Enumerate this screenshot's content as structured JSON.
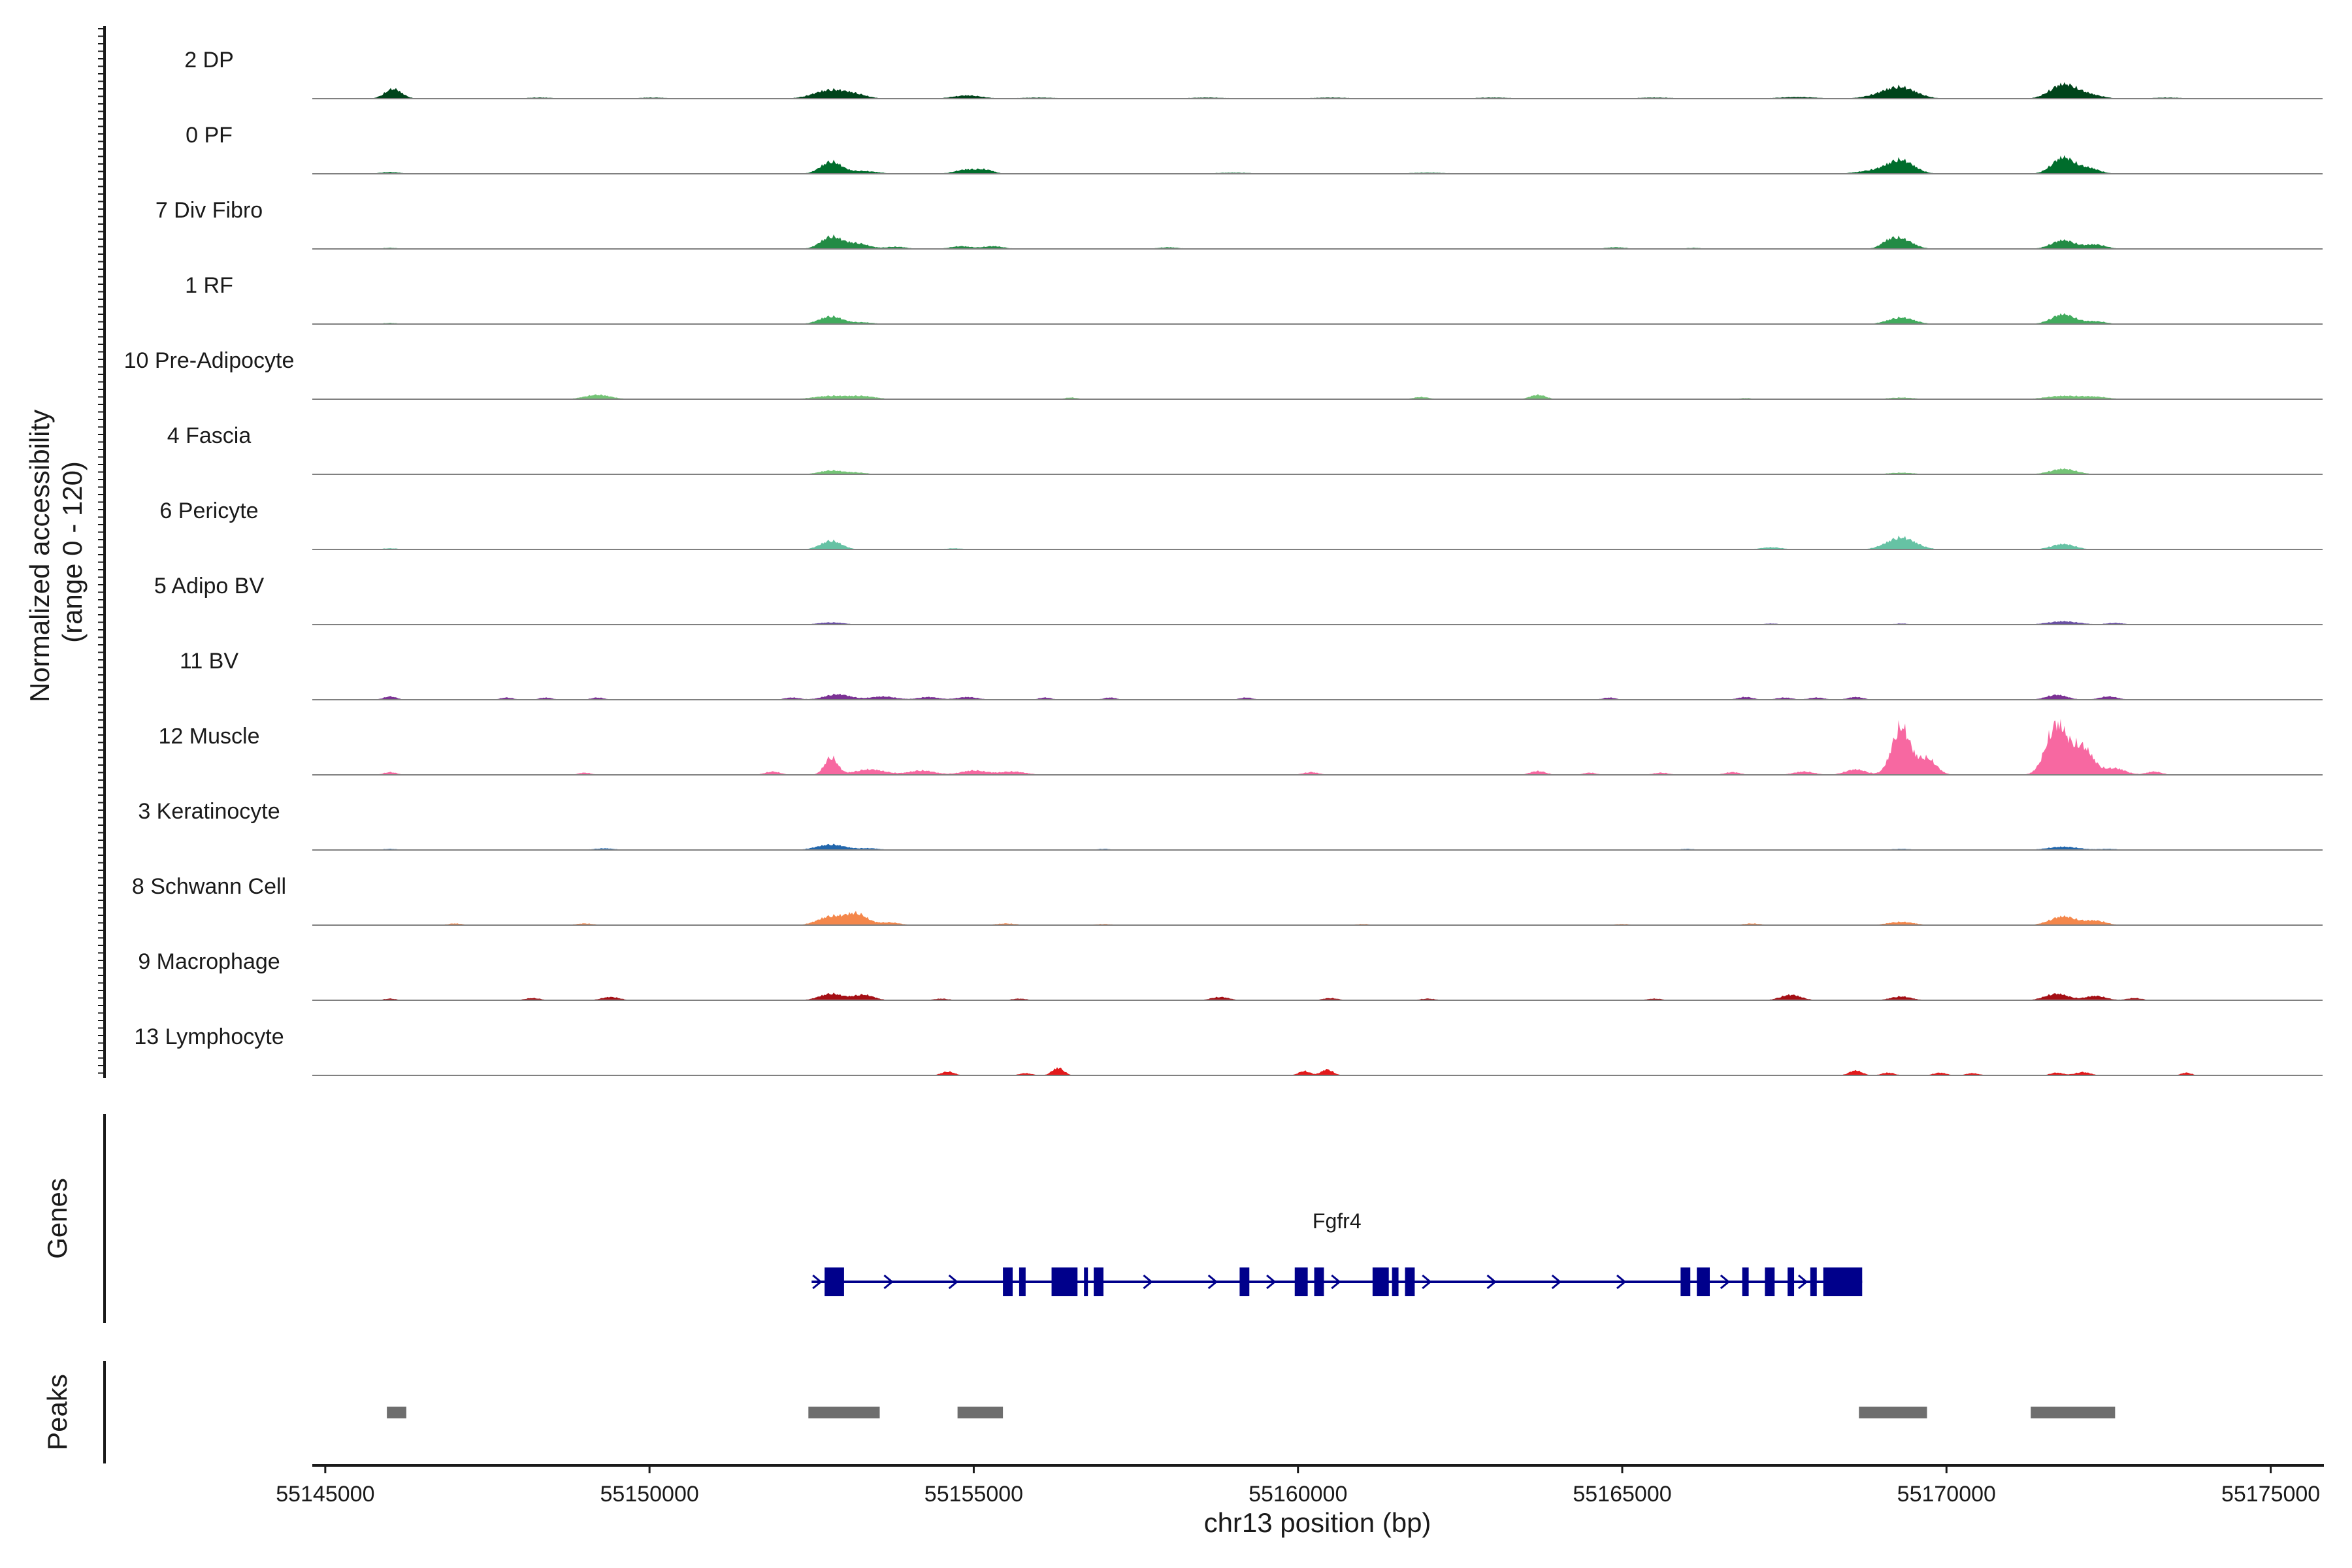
{
  "chart_data": {
    "type": "area",
    "title": "",
    "ylabel_line1": "Normalized accessibility",
    "ylabel_line2": "(range 0 - 120)",
    "yrange": [
      0,
      120
    ],
    "xlabel": "chr13 position (bp)",
    "xlim": [
      55144800,
      55175800
    ],
    "xticks": [
      55145000,
      55150000,
      55155000,
      55160000,
      55165000,
      55170000,
      55175000
    ],
    "xtick_labels": [
      "55145000",
      "55150000",
      "55155000",
      "55160000",
      "55165000",
      "55170000",
      "55175000"
    ],
    "series": [
      {
        "name": "2 DP",
        "color": "#00441b",
        "peaks": [
          [
            55146050,
            18,
            130
          ],
          [
            55148300,
            2,
            220
          ],
          [
            55150050,
            2,
            220
          ],
          [
            55152800,
            16,
            260
          ],
          [
            55153200,
            5,
            180
          ],
          [
            55154900,
            6,
            220
          ],
          [
            55156000,
            2,
            300
          ],
          [
            55158600,
            2,
            300
          ],
          [
            55160500,
            2,
            300
          ],
          [
            55163000,
            2,
            300
          ],
          [
            55165500,
            2,
            300
          ],
          [
            55167700,
            3,
            300
          ],
          [
            55169300,
            19,
            240
          ],
          [
            55169000,
            5,
            260
          ],
          [
            55171800,
            26,
            200
          ],
          [
            55172200,
            7,
            200
          ],
          [
            55173400,
            2,
            240
          ]
        ]
      },
      {
        "name": "0 PF",
        "color": "#006d2c",
        "peaks": [
          [
            55146000,
            3,
            160
          ],
          [
            55150000,
            1,
            200
          ],
          [
            55152800,
            22,
            160
          ],
          [
            55153300,
            5,
            220
          ],
          [
            55154900,
            8,
            180
          ],
          [
            55155200,
            6,
            120
          ],
          [
            55159000,
            2,
            300
          ],
          [
            55162000,
            2,
            300
          ],
          [
            55169300,
            24,
            200
          ],
          [
            55168900,
            6,
            260
          ],
          [
            55171800,
            30,
            170
          ],
          [
            55172200,
            10,
            160
          ]
        ]
      },
      {
        "name": "7 Div Fibro",
        "color": "#238b45",
        "peaks": [
          [
            55146000,
            2,
            120
          ],
          [
            55152800,
            22,
            160
          ],
          [
            55153200,
            10,
            180
          ],
          [
            55153800,
            4,
            160
          ],
          [
            55154800,
            5,
            160
          ],
          [
            55155300,
            5,
            160
          ],
          [
            55158000,
            3,
            160
          ],
          [
            55164900,
            3,
            160
          ],
          [
            55166100,
            2,
            120
          ],
          [
            55169300,
            18,
            180
          ],
          [
            55169100,
            8,
            120
          ],
          [
            55171800,
            16,
            180
          ],
          [
            55172300,
            8,
            160
          ]
        ]
      },
      {
        "name": "1 RF",
        "color": "#41ab5d",
        "peaks": [
          [
            55146000,
            2,
            120
          ],
          [
            55152800,
            14,
            180
          ],
          [
            55153300,
            3,
            160
          ],
          [
            55169300,
            12,
            200
          ],
          [
            55171800,
            18,
            180
          ],
          [
            55172300,
            5,
            160
          ]
        ]
      },
      {
        "name": "10 Pre-Adipocyte",
        "color": "#74c476",
        "peaks": [
          [
            55149200,
            8,
            200
          ],
          [
            55152800,
            6,
            260
          ],
          [
            55153300,
            5,
            200
          ],
          [
            55156500,
            3,
            100
          ],
          [
            55161900,
            4,
            120
          ],
          [
            55163700,
            8,
            120
          ],
          [
            55166900,
            2,
            100
          ],
          [
            55169300,
            3,
            200
          ],
          [
            55171800,
            6,
            260
          ],
          [
            55172300,
            4,
            200
          ]
        ]
      },
      {
        "name": "4 Fascia",
        "color": "#74c476",
        "peaks": [
          [
            55152800,
            7,
            180
          ],
          [
            55153200,
            3,
            160
          ],
          [
            55169300,
            3,
            200
          ],
          [
            55171800,
            10,
            200
          ]
        ]
      },
      {
        "name": "6 Pericyte",
        "color": "#66c2a4",
        "peaks": [
          [
            55146000,
            2,
            140
          ],
          [
            55152800,
            16,
            160
          ],
          [
            55154700,
            2,
            140
          ],
          [
            55167300,
            4,
            160
          ],
          [
            55169300,
            22,
            220
          ],
          [
            55171800,
            10,
            180
          ]
        ]
      },
      {
        "name": "5 Adipo BV",
        "color": "#6a51a3",
        "peaks": [
          [
            55150000,
            1,
            120
          ],
          [
            55152800,
            4,
            200
          ],
          [
            55167300,
            2,
            120
          ],
          [
            55169300,
            2,
            120
          ],
          [
            55171800,
            6,
            240
          ],
          [
            55172600,
            3,
            140
          ]
        ]
      },
      {
        "name": "11 BV",
        "color": "#7b3294",
        "peaks": [
          [
            55146000,
            6,
            100
          ],
          [
            55147800,
            4,
            100
          ],
          [
            55148400,
            4,
            100
          ],
          [
            55149200,
            4,
            100
          ],
          [
            55152200,
            4,
            120
          ],
          [
            55152900,
            10,
            200
          ],
          [
            55153600,
            6,
            200
          ],
          [
            55154300,
            5,
            160
          ],
          [
            55154900,
            5,
            160
          ],
          [
            55156100,
            4,
            100
          ],
          [
            55157100,
            4,
            100
          ],
          [
            55159200,
            4,
            100
          ],
          [
            55164800,
            4,
            100
          ],
          [
            55166900,
            5,
            120
          ],
          [
            55167500,
            4,
            120
          ],
          [
            55168000,
            4,
            120
          ],
          [
            55168600,
            5,
            120
          ],
          [
            55171700,
            9,
            160
          ],
          [
            55172500,
            6,
            140
          ]
        ]
      },
      {
        "name": "12 Muscle",
        "color": "#f768a1",
        "peaks": [
          [
            55146000,
            5,
            100
          ],
          [
            55149000,
            4,
            100
          ],
          [
            55151900,
            6,
            120
          ],
          [
            55152800,
            32,
            100
          ],
          [
            55153400,
            10,
            240
          ],
          [
            55154200,
            8,
            200
          ],
          [
            55155000,
            8,
            200
          ],
          [
            55155600,
            6,
            200
          ],
          [
            55160200,
            5,
            120
          ],
          [
            55163700,
            7,
            120
          ],
          [
            55164500,
            4,
            100
          ],
          [
            55165600,
            4,
            120
          ],
          [
            55166700,
            5,
            120
          ],
          [
            55167800,
            6,
            160
          ],
          [
            55168600,
            10,
            160
          ],
          [
            55169300,
            88,
            140
          ],
          [
            55169700,
            30,
            140
          ],
          [
            55171700,
            92,
            160
          ],
          [
            55172100,
            50,
            160
          ],
          [
            55172600,
            12,
            160
          ],
          [
            55173200,
            6,
            120
          ]
        ]
      },
      {
        "name": "3 Keratinocyte",
        "color": "#2166ac",
        "peaks": [
          [
            55146000,
            2,
            120
          ],
          [
            55149300,
            3,
            160
          ],
          [
            55152800,
            10,
            220
          ],
          [
            55153400,
            3,
            160
          ],
          [
            55157000,
            2,
            120
          ],
          [
            55166000,
            2,
            120
          ],
          [
            55169300,
            2,
            160
          ],
          [
            55171800,
            6,
            240
          ],
          [
            55172500,
            2,
            160
          ]
        ]
      },
      {
        "name": "8 Schwann Cell",
        "color": "#f4874b",
        "peaks": [
          [
            55147000,
            3,
            120
          ],
          [
            55149000,
            3,
            140
          ],
          [
            55152800,
            16,
            200
          ],
          [
            55153200,
            20,
            160
          ],
          [
            55153700,
            5,
            160
          ],
          [
            55155500,
            3,
            160
          ],
          [
            55157000,
            2,
            140
          ],
          [
            55161000,
            2,
            120
          ],
          [
            55165000,
            2,
            140
          ],
          [
            55167000,
            3,
            140
          ],
          [
            55169300,
            6,
            200
          ],
          [
            55171800,
            16,
            200
          ],
          [
            55172300,
            8,
            160
          ]
        ]
      },
      {
        "name": "9 Macrophage",
        "color": "#a50f15",
        "peaks": [
          [
            55146000,
            3,
            100
          ],
          [
            55148200,
            4,
            120
          ],
          [
            55149400,
            6,
            140
          ],
          [
            55152800,
            12,
            180
          ],
          [
            55153300,
            10,
            160
          ],
          [
            55154500,
            3,
            120
          ],
          [
            55155700,
            3,
            120
          ],
          [
            55158800,
            6,
            140
          ],
          [
            55160500,
            4,
            120
          ],
          [
            55162000,
            3,
            120
          ],
          [
            55165500,
            3,
            120
          ],
          [
            55167600,
            10,
            160
          ],
          [
            55169300,
            7,
            160
          ],
          [
            55171700,
            12,
            180
          ],
          [
            55172300,
            8,
            160
          ],
          [
            55172900,
            4,
            120
          ]
        ]
      },
      {
        "name": "13 Lymphocyte",
        "color": "#e31a1c",
        "peaks": [
          [
            55154600,
            7,
            100
          ],
          [
            55155800,
            4,
            100
          ],
          [
            55156300,
            14,
            90
          ],
          [
            55160100,
            8,
            90
          ],
          [
            55160450,
            11,
            90
          ],
          [
            55168600,
            9,
            100
          ],
          [
            55169100,
            5,
            100
          ],
          [
            55169900,
            5,
            100
          ],
          [
            55170400,
            4,
            100
          ],
          [
            55171700,
            5,
            100
          ],
          [
            55172100,
            6,
            120
          ],
          [
            55173700,
            5,
            80
          ]
        ]
      }
    ],
    "genes": {
      "label": "Genes",
      "gene_name": "Fgfr4",
      "start": 55152500,
      "end": 55168700,
      "strand": "+",
      "exons": [
        [
          55152700,
          55153000
        ],
        [
          55155450,
          55155600
        ],
        [
          55155700,
          55155800
        ],
        [
          55156200,
          55156600
        ],
        [
          55156700,
          55156750
        ],
        [
          55156850,
          55157000
        ],
        [
          55159100,
          55159250
        ],
        [
          55159950,
          55160150
        ],
        [
          55160250,
          55160400
        ],
        [
          55161150,
          55161400
        ],
        [
          55161450,
          55161550
        ],
        [
          55161650,
          55161800
        ],
        [
          55165900,
          55166050
        ],
        [
          55166150,
          55166350
        ],
        [
          55166850,
          55166950
        ],
        [
          55167200,
          55167350
        ],
        [
          55167550,
          55167650
        ],
        [
          55167900,
          55168000
        ],
        [
          55168100,
          55168700
        ]
      ],
      "arrows": [
        55152600,
        55153700,
        55154700,
        55157700,
        55158700,
        55159600,
        55160600,
        55162000,
        55163000,
        55164000,
        55165000,
        55166600,
        55167800
      ]
    },
    "peaks_track": {
      "label": "Peaks",
      "regions": [
        [
          55145950,
          55146250
        ],
        [
          55152450,
          55153550
        ],
        [
          55154750,
          55155450
        ],
        [
          55168650,
          55169700
        ],
        [
          55171300,
          55172600
        ]
      ]
    }
  }
}
